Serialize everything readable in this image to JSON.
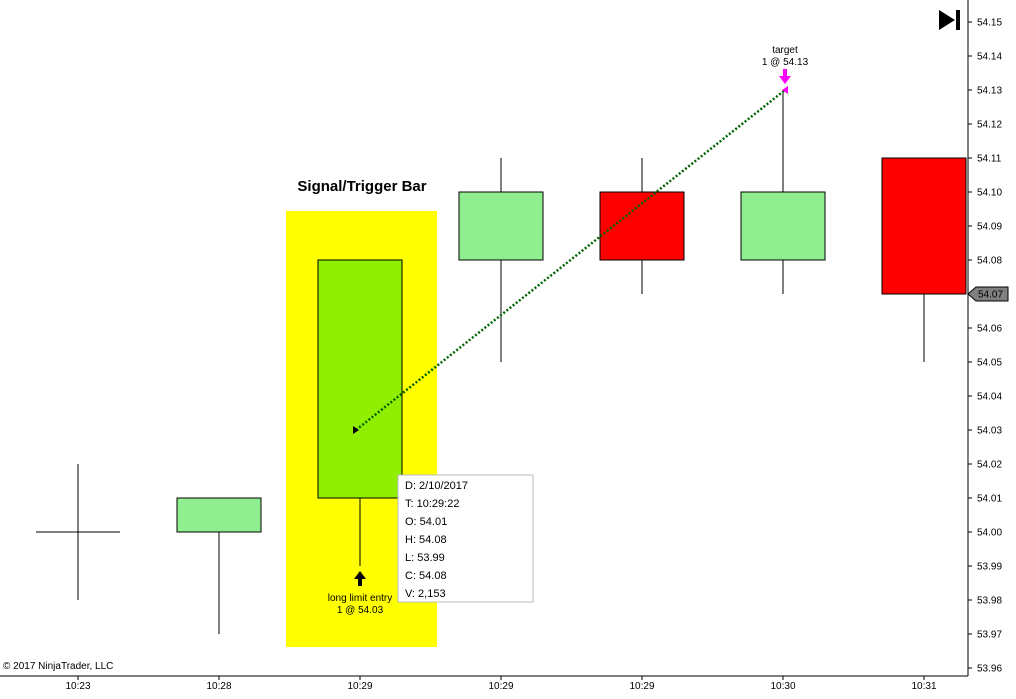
{
  "chart_data": {
    "type": "candlestick",
    "title": "Signal/Trigger Bar",
    "copyright": "© 2017 NinjaTrader, LLC",
    "ylim": [
      53.96,
      54.155
    ],
    "y_ticks": [
      {
        "value": 54.15,
        "label": "54.15"
      },
      {
        "value": 54.14,
        "label": "54.14"
      },
      {
        "value": 54.13,
        "label": "54.13"
      },
      {
        "value": 54.12,
        "label": "54.12"
      },
      {
        "value": 54.11,
        "label": "54.11"
      },
      {
        "value": 54.1,
        "label": "54.10"
      },
      {
        "value": 54.09,
        "label": "54.09"
      },
      {
        "value": 54.08,
        "label": "54.08"
      },
      {
        "value": 54.07,
        "label": "54.07"
      },
      {
        "value": 54.06,
        "label": "54.06"
      },
      {
        "value": 54.05,
        "label": "54.05"
      },
      {
        "value": 54.04,
        "label": "54.04"
      },
      {
        "value": 54.03,
        "label": "54.03"
      },
      {
        "value": 54.02,
        "label": "54.02"
      },
      {
        "value": 54.01,
        "label": "54.01"
      },
      {
        "value": 54.0,
        "label": "54.00"
      },
      {
        "value": 53.99,
        "label": "53.99"
      },
      {
        "value": 53.98,
        "label": "53.98"
      },
      {
        "value": 53.97,
        "label": "53.97"
      },
      {
        "value": 53.96,
        "label": "53.96"
      }
    ],
    "bars": [
      {
        "time": "10:23",
        "open": 54.0,
        "high": 54.02,
        "low": 53.98,
        "close": 54.0
      },
      {
        "time": "10:28",
        "open": 54.0,
        "high": 54.01,
        "low": 53.97,
        "close": 54.01
      },
      {
        "time": "10:29",
        "open": 54.01,
        "high": 54.08,
        "low": 53.99,
        "close": 54.08
      },
      {
        "time": "10:29",
        "open": 54.08,
        "high": 54.11,
        "low": 54.05,
        "close": 54.1
      },
      {
        "time": "10:29",
        "open": 54.1,
        "high": 54.11,
        "low": 54.07,
        "close": 54.08
      },
      {
        "time": "10:30",
        "open": 54.08,
        "high": 54.13,
        "low": 54.07,
        "close": 54.1
      },
      {
        "time": "10:31",
        "open": 54.11,
        "high": 54.11,
        "low": 54.05,
        "close": 54.07
      }
    ],
    "highlight_bar_index": 2,
    "current_price": {
      "value": 54.07,
      "label": "54.07"
    },
    "entry": {
      "bar_index": 2,
      "price": 54.03,
      "label": "long limit entry",
      "detail": "1 @ 54.03"
    },
    "exit": {
      "bar_index": 5,
      "price": 54.13,
      "label": "target",
      "detail": "1 @ 54.13"
    },
    "tooltip": [
      "D: 2/10/2017",
      "T: 10:29:22",
      "O: 54.01",
      "H: 54.08",
      "L: 53.99",
      "C: 54.08",
      "V: 2,153"
    ],
    "colors": {
      "up_bar": "#90ee90",
      "down_bar": "#ff0000",
      "signal_bar": "#90ee00",
      "highlight": "#ffff00",
      "trade_line": "#006400",
      "exit_marker": "#ff00ff",
      "price_marker": "#808080"
    }
  }
}
